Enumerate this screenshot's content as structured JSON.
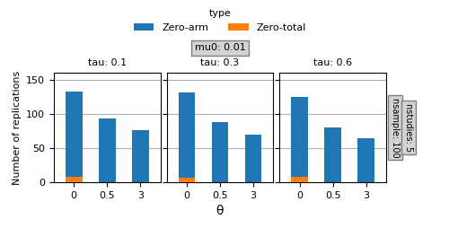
{
  "title": "mu0: 0.01",
  "x_label": "θ",
  "y_label": "Number of replications",
  "legend_title": "type",
  "legend": "upper center",
  "annotations": [
    "nsample: 100",
    "nstudies: 5"
  ],
  "chart_data": [
    {
      "type": "bar",
      "title": "tau: 0.1",
      "categories": [
        "0",
        "0.5",
        "3"
      ],
      "series": [
        {
          "name": "Zero-arm",
          "values": [
            133,
            93,
            77
          ]
        },
        {
          "name": "Zero-total",
          "values": [
            8,
            0,
            0
          ]
        }
      ],
      "ylim": [
        0,
        160
      ],
      "yticks": [
        0,
        50,
        100,
        150
      ],
      "grid": true
    },
    {
      "type": "bar",
      "title": "tau: 0.3",
      "categories": [
        "0",
        "0.5",
        "3"
      ],
      "series": [
        {
          "name": "Zero-arm",
          "values": [
            132,
            88,
            70
          ]
        },
        {
          "name": "Zero-total",
          "values": [
            7,
            0,
            0
          ]
        }
      ],
      "ylim": [
        0,
        160
      ],
      "yticks": [
        0,
        50,
        100,
        150
      ],
      "grid": true,
      "tick_labels": "x"
    },
    {
      "type": "bar",
      "title": "tau: 0.6",
      "categories": [
        "0",
        "0.5",
        "3"
      ],
      "series": [
        {
          "name": "Zero-arm",
          "values": [
            125,
            80,
            65
          ]
        },
        {
          "name": "Zero-total",
          "values": [
            8,
            0,
            0
          ]
        }
      ],
      "ylim": [
        0,
        160
      ],
      "yticks": [
        0,
        50,
        100,
        150
      ],
      "grid": true,
      "tick_labels": "x"
    }
  ]
}
